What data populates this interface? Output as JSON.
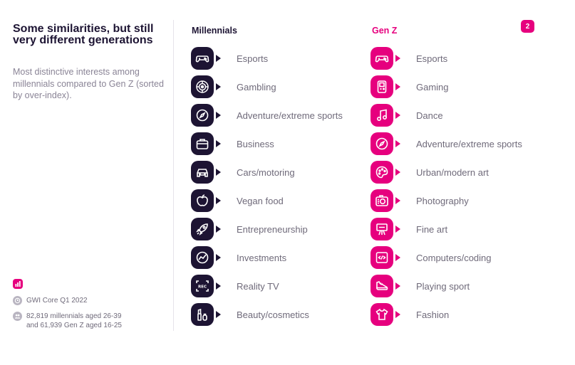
{
  "header": {
    "title": "Some similarities, but still very different generations",
    "subtitle": "Most distinctive interests among millennials compared to Gen Z (sorted by over-index).",
    "page_number": "2"
  },
  "columns": {
    "millennials": {
      "title": "Millennials",
      "items": [
        {
          "label": "Esports",
          "icon": "gamepad-icon"
        },
        {
          "label": "Gambling",
          "icon": "roulette-icon"
        },
        {
          "label": "Adventure/extreme sports",
          "icon": "compass-icon"
        },
        {
          "label": "Business",
          "icon": "briefcase-icon"
        },
        {
          "label": "Cars/motoring",
          "icon": "car-icon"
        },
        {
          "label": "Vegan food",
          "icon": "apple-icon"
        },
        {
          "label": "Entrepreneurship",
          "icon": "rocket-icon"
        },
        {
          "label": "Investments",
          "icon": "chart-icon"
        },
        {
          "label": "Reality TV",
          "icon": "rec-icon"
        },
        {
          "label": "Beauty/cosmetics",
          "icon": "cosmetics-icon"
        }
      ]
    },
    "genz": {
      "title": "Gen Z",
      "items": [
        {
          "label": "Esports",
          "icon": "gamepad-icon"
        },
        {
          "label": "Gaming",
          "icon": "handheld-console-icon"
        },
        {
          "label": "Dance",
          "icon": "music-note-icon"
        },
        {
          "label": "Adventure/extreme sports",
          "icon": "compass-icon"
        },
        {
          "label": "Urban/modern art",
          "icon": "palette-icon"
        },
        {
          "label": "Photography",
          "icon": "camera-icon"
        },
        {
          "label": "Fine art",
          "icon": "easel-icon"
        },
        {
          "label": "Computers/coding",
          "icon": "code-icon"
        },
        {
          "label": "Playing sport",
          "icon": "sneaker-icon"
        },
        {
          "label": "Fashion",
          "icon": "tshirt-icon"
        }
      ]
    }
  },
  "footer": {
    "source": "GWI Core Q1 2022",
    "sample_line1": "82,819 millennials aged 26-39",
    "sample_line2": "and 61,939 Gen Z aged 16-25"
  },
  "colors": {
    "navy": "#1d1433",
    "magenta": "#e6007e",
    "text_gray": "#6f6a7a"
  }
}
